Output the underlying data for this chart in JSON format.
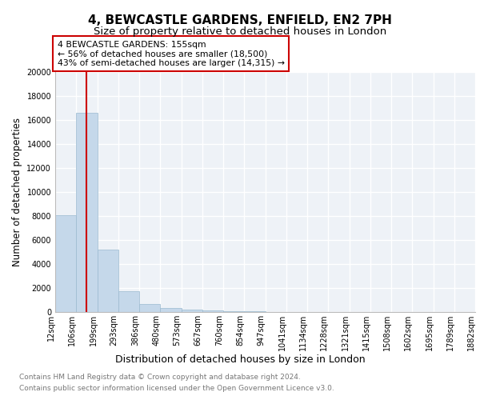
{
  "title": "4, BEWCASTLE GARDENS, ENFIELD, EN2 7PH",
  "subtitle": "Size of property relative to detached houses in London",
  "xlabel": "Distribution of detached houses by size in London",
  "ylabel": "Number of detached properties",
  "footnote1": "Contains HM Land Registry data © Crown copyright and database right 2024.",
  "footnote2": "Contains public sector information licensed under the Open Government Licence v3.0.",
  "annotation_line1": "4 BEWCASTLE GARDENS: 155sqm",
  "annotation_line2": "← 56% of detached houses are smaller (18,500)",
  "annotation_line3": "43% of semi-detached houses are larger (14,315) →",
  "bar_color": "#c5d8ea",
  "bar_edgecolor": "#9bbad0",
  "vline_color": "#cc0000",
  "vline_bin_index": 1.5,
  "ylim": [
    0,
    20000
  ],
  "yticks": [
    0,
    2000,
    4000,
    6000,
    8000,
    10000,
    12000,
    14000,
    16000,
    18000,
    20000
  ],
  "bin_labels": [
    "12sqm",
    "106sqm",
    "199sqm",
    "293sqm",
    "386sqm",
    "480sqm",
    "573sqm",
    "667sqm",
    "760sqm",
    "854sqm",
    "947sqm",
    "1041sqm",
    "1134sqm",
    "1228sqm",
    "1321sqm",
    "1415sqm",
    "1508sqm",
    "1602sqm",
    "1695sqm",
    "1789sqm",
    "1882sqm"
  ],
  "bar_heights": [
    8100,
    16600,
    5200,
    1750,
    650,
    320,
    200,
    130,
    90,
    50,
    20,
    10,
    5,
    0,
    0,
    0,
    0,
    0,
    0,
    0
  ],
  "background_color": "#eef2f7",
  "grid_color": "#ffffff",
  "title_fontsize": 11,
  "subtitle_fontsize": 9.5,
  "ylabel_fontsize": 8.5,
  "xlabel_fontsize": 9,
  "tick_fontsize": 7,
  "annotation_fontsize": 7.8,
  "footnote_fontsize": 6.5,
  "footnote_color": "#777777"
}
